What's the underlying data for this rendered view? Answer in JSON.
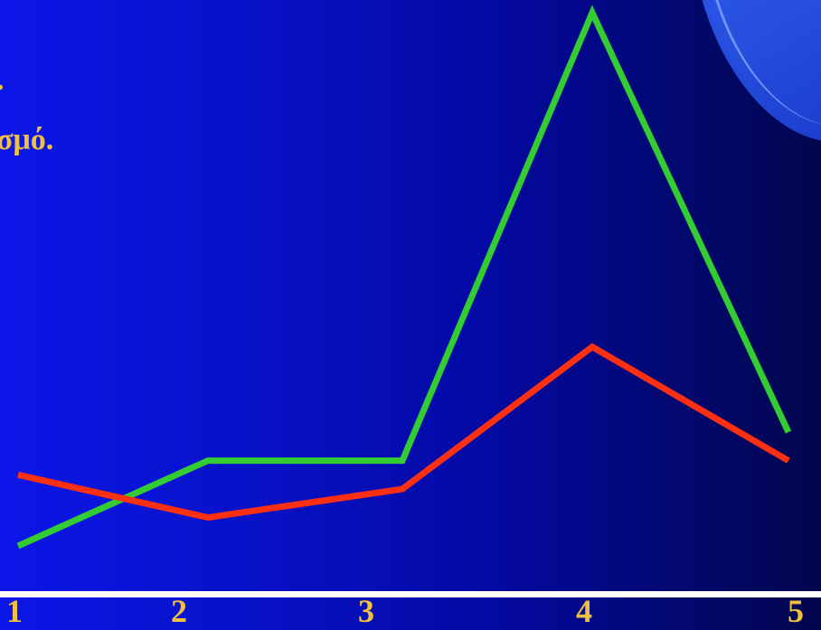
{
  "slide": {
    "text_fragments": {
      "line1": ".",
      "line2": "σμό."
    }
  },
  "colors": {
    "background_start": "#0c16e8",
    "background_end": "#02064e",
    "text": "#f0c040",
    "axis": "#ffffff"
  },
  "chart_data": {
    "type": "line",
    "x": [
      1,
      2,
      3,
      4,
      5
    ],
    "categories": [
      "1",
      "2",
      "3",
      "4",
      "5"
    ],
    "series": [
      {
        "color": "#33cc33",
        "values": [
          0.0,
          1.2,
          1.2,
          7.5,
          1.6
        ]
      },
      {
        "color": "#ff3010",
        "values": [
          1.0,
          0.4,
          0.8,
          2.8,
          1.2
        ]
      }
    ],
    "title": "",
    "xlabel": "",
    "ylabel": "",
    "ylim": [
      0,
      7.5
    ],
    "grid": false
  }
}
